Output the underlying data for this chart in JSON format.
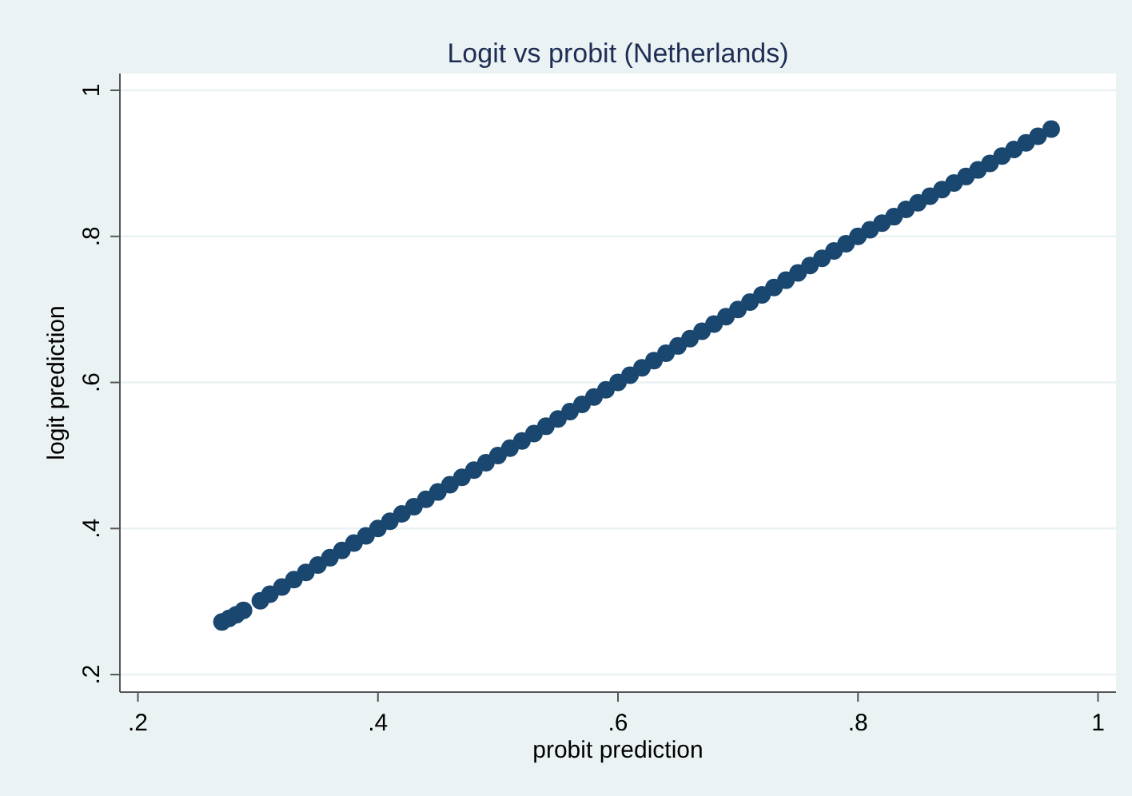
{
  "chart_data": {
    "type": "scatter",
    "title": "Logit vs probit (Netherlands)",
    "xlabel": "probit prediction",
    "ylabel": "logit prediction",
    "x": [
      0.27,
      0.276,
      0.282,
      0.288,
      0.302,
      0.31,
      0.32,
      0.33,
      0.34,
      0.35,
      0.36,
      0.37,
      0.38,
      0.39,
      0.4,
      0.41,
      0.42,
      0.43,
      0.44,
      0.45,
      0.46,
      0.47,
      0.48,
      0.49,
      0.5,
      0.51,
      0.52,
      0.53,
      0.54,
      0.55,
      0.56,
      0.57,
      0.58,
      0.59,
      0.6,
      0.61,
      0.62,
      0.63,
      0.64,
      0.65,
      0.66,
      0.67,
      0.68,
      0.69,
      0.7,
      0.71,
      0.72,
      0.73,
      0.74,
      0.75,
      0.76,
      0.77,
      0.78,
      0.79,
      0.8,
      0.81,
      0.82,
      0.83,
      0.84,
      0.85,
      0.86,
      0.87,
      0.88,
      0.89,
      0.9,
      0.91,
      0.92,
      0.93,
      0.94,
      0.95,
      0.961
    ],
    "series": [
      {
        "color": "#1a476f",
        "values": [
          0.272,
          0.277,
          0.282,
          0.288,
          0.301,
          0.31,
          0.32,
          0.33,
          0.34,
          0.35,
          0.36,
          0.37,
          0.38,
          0.39,
          0.4,
          0.41,
          0.42,
          0.43,
          0.44,
          0.45,
          0.46,
          0.47,
          0.48,
          0.49,
          0.5,
          0.51,
          0.52,
          0.53,
          0.54,
          0.55,
          0.56,
          0.57,
          0.58,
          0.59,
          0.6,
          0.61,
          0.62,
          0.63,
          0.64,
          0.65,
          0.66,
          0.67,
          0.68,
          0.69,
          0.7,
          0.71,
          0.72,
          0.73,
          0.74,
          0.75,
          0.76,
          0.77,
          0.78,
          0.79,
          0.8,
          0.809,
          0.818,
          0.827,
          0.837,
          0.846,
          0.855,
          0.864,
          0.873,
          0.882,
          0.891,
          0.9,
          0.91,
          0.919,
          0.928,
          0.937,
          0.947
        ]
      }
    ],
    "xlim": [
      0.185,
      1.015
    ],
    "ylim": [
      0.176,
      1.023
    ],
    "xticks": [
      {
        "value": 0.2,
        "label": ".2"
      },
      {
        "value": 0.4,
        "label": ".4"
      },
      {
        "value": 0.6,
        "label": ".6"
      },
      {
        "value": 0.8,
        "label": ".8"
      },
      1
    ],
    "yticks": [
      {
        "value": 0.2,
        "label": ".2"
      },
      {
        "value": 0.4,
        "label": ".4"
      },
      {
        "value": 0.6,
        "label": ".6"
      },
      {
        "value": 0.8,
        "label": ".8"
      },
      1
    ],
    "grid": "y",
    "marker": "circle"
  }
}
